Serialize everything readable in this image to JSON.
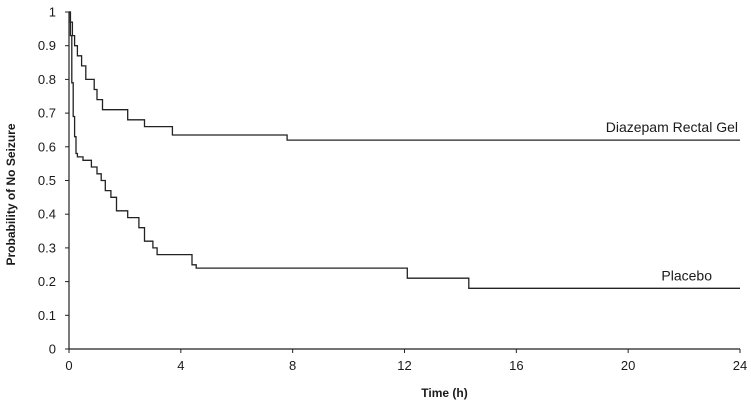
{
  "chart_data": {
    "type": "line",
    "step": true,
    "title": "",
    "xlabel": "Time (h)",
    "ylabel": "Probability of No Seizure",
    "xlim": [
      0,
      24
    ],
    "ylim": [
      0,
      1
    ],
    "xticks": [
      0,
      4,
      8,
      12,
      16,
      20,
      24
    ],
    "yticks": [
      0,
      0.1,
      0.2,
      0.3,
      0.4,
      0.5,
      0.6,
      0.7,
      0.8,
      0.9,
      1
    ],
    "ytick_labels": [
      "0",
      "0.1",
      "0.2",
      "0.3",
      "0.4",
      "0.5",
      "0.6",
      "0.7",
      "0.8",
      "0.9",
      "1"
    ],
    "grid": false,
    "legend": "none",
    "series": [
      {
        "name": "Diazepam Rectal Gel",
        "x": [
          0,
          0.05,
          0.12,
          0.2,
          0.3,
          0.45,
          0.6,
          0.9,
          1.0,
          1.2,
          2.1,
          2.7,
          3.7,
          7.8,
          24
        ],
        "y": [
          1,
          0.97,
          0.93,
          0.9,
          0.87,
          0.84,
          0.8,
          0.77,
          0.74,
          0.71,
          0.68,
          0.66,
          0.635,
          0.62,
          0.62
        ]
      },
      {
        "name": "Placebo",
        "x": [
          0,
          0.05,
          0.1,
          0.15,
          0.2,
          0.25,
          0.3,
          0.5,
          0.8,
          1.0,
          1.15,
          1.3,
          1.5,
          1.7,
          2.1,
          2.5,
          2.7,
          3.0,
          3.15,
          4.4,
          4.55,
          12.1,
          14.3,
          24
        ],
        "y": [
          1,
          0.93,
          0.79,
          0.69,
          0.63,
          0.58,
          0.57,
          0.56,
          0.54,
          0.52,
          0.5,
          0.47,
          0.45,
          0.41,
          0.39,
          0.36,
          0.32,
          0.3,
          0.28,
          0.25,
          0.24,
          0.21,
          0.18,
          0.18
        ]
      }
    ]
  }
}
